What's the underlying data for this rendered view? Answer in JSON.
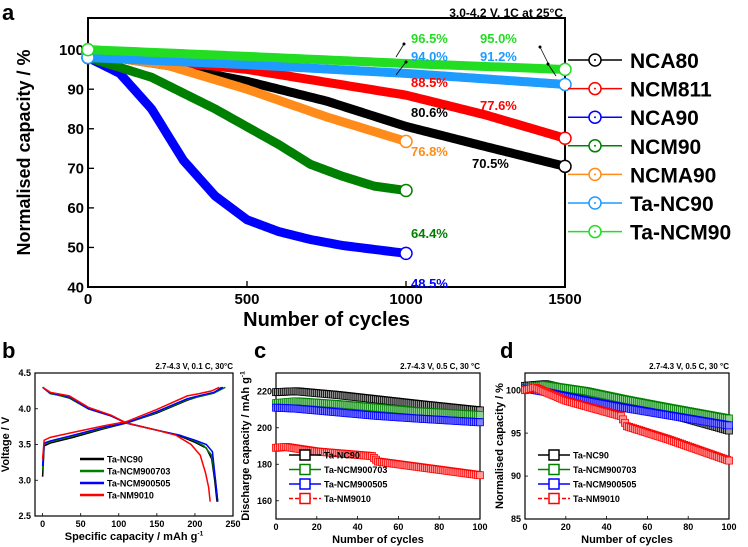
{
  "chart_data": [
    {
      "panel": "a",
      "type": "line",
      "title": "3.0-4.2 V, 1C  at 25°C",
      "xlabel": "Number of cycles",
      "ylabel": "Normalised capacity / %",
      "xlim": [
        0,
        1500
      ],
      "ylim": [
        40,
        108
      ],
      "xticks": [
        0,
        500,
        1000,
        1500
      ],
      "yticks": [
        40,
        50,
        60,
        70,
        80,
        90,
        100
      ],
      "legend_position": "right-outside",
      "series": [
        {
          "name": "NCA80",
          "color": "#000000",
          "x": [
            0,
            250,
            500,
            750,
            1000,
            1250,
            1500
          ],
          "y": [
            99,
            96,
            92,
            87,
            80.6,
            75.5,
            70.5
          ]
        },
        {
          "name": "NCM811",
          "color": "#ff0000",
          "x": [
            0,
            500,
            1000,
            1250,
            1500
          ],
          "y": [
            99,
            95,
            88.5,
            83.5,
            77.6
          ]
        },
        {
          "name": "NCA90",
          "color": "#0000ff",
          "x": [
            0,
            100,
            200,
            300,
            400,
            500,
            600,
            700,
            800,
            900,
            1000
          ],
          "y": [
            98,
            94,
            85,
            72,
            63,
            57,
            54,
            52,
            50.5,
            49.5,
            48.5
          ]
        },
        {
          "name": "NCM90",
          "color": "#008000",
          "x": [
            0,
            200,
            400,
            600,
            700,
            800,
            900,
            1000
          ],
          "y": [
            98,
            93,
            85,
            76,
            71,
            68,
            65.5,
            64.4
          ]
        },
        {
          "name": "NCMA90",
          "color": "#ff8c1a",
          "x": [
            0,
            250,
            500,
            750,
            1000
          ],
          "y": [
            99,
            96,
            90,
            83,
            76.8
          ]
        },
        {
          "name": "Ta-NC90",
          "color": "#1e9bff",
          "x": [
            0,
            500,
            1000,
            1500
          ],
          "y": [
            98,
            96.2,
            94.0,
            91.2
          ]
        },
        {
          "name": "Ta-NCM90",
          "color": "#22dd22",
          "x": [
            0,
            500,
            1000,
            1500
          ],
          "y": [
            100,
            98.3,
            96.5,
            95.0
          ]
        }
      ],
      "annotations": [
        {
          "text": "96.5%",
          "color": "#22dd22"
        },
        {
          "text": "94.0%",
          "color": "#1e9bff"
        },
        {
          "text": "88.5%",
          "color": "#ff0000"
        },
        {
          "text": "80.6%",
          "color": "#000000"
        },
        {
          "text": "76.8%",
          "color": "#ff8c1a"
        },
        {
          "text": "64.4%",
          "color": "#008000"
        },
        {
          "text": "48.5%",
          "color": "#0000ff"
        },
        {
          "text": "95.0%",
          "color": "#22dd22"
        },
        {
          "text": "91.2%",
          "color": "#1e9bff"
        },
        {
          "text": "77.6%",
          "color": "#ff0000"
        },
        {
          "text": "70.5%",
          "color": "#000000"
        }
      ]
    },
    {
      "panel": "b",
      "type": "line",
      "title": "2.7-4.3 V, 0.1 C, 30°C",
      "xlabel": "Specific capacity / mAh g",
      "xlabel_sup": "-1",
      "ylabel": "Voltage / V",
      "xlim": [
        -10,
        250
      ],
      "ylim": [
        2.5,
        4.5
      ],
      "xticks": [
        0,
        50,
        100,
        150,
        200,
        250
      ],
      "yticks": [
        2.5,
        3.0,
        3.5,
        4.0,
        4.5
      ],
      "legend_position": "lower-left",
      "series": [
        {
          "name": "Ta-NC90",
          "color": "#000000",
          "charge": {
            "x": [
              0,
              2,
              10,
              40,
              80,
              110,
              150,
              190,
              205,
              225,
              235
            ],
            "y": [
              3.05,
              3.48,
              3.52,
              3.6,
              3.72,
              3.8,
              3.94,
              4.12,
              4.17,
              4.22,
              4.3
            ]
          },
          "discharge": {
            "x": [
              0,
              10,
              35,
              60,
              90,
              110,
              150,
              180,
              200,
              215,
              222,
              226,
              229
            ],
            "y": [
              4.3,
              4.22,
              4.15,
              4.0,
              3.9,
              3.8,
              3.7,
              3.62,
              3.53,
              3.45,
              3.3,
              3.0,
              2.7
            ]
          }
        },
        {
          "name": "Ta-NCM900703",
          "color": "#008000",
          "charge": {
            "x": [
              0,
              2,
              10,
              40,
              80,
              110,
              150,
              190,
              205,
              225,
              240
            ],
            "y": [
              3.15,
              3.5,
              3.54,
              3.62,
              3.73,
              3.8,
              3.95,
              4.13,
              4.17,
              4.22,
              4.3
            ]
          },
          "discharge": {
            "x": [
              0,
              10,
              35,
              60,
              90,
              110,
              150,
              180,
              200,
              212,
              222,
              227,
              230
            ],
            "y": [
              4.3,
              4.21,
              4.16,
              4.0,
              3.9,
              3.8,
              3.7,
              3.63,
              3.55,
              3.48,
              3.35,
              3.0,
              2.7
            ]
          }
        },
        {
          "name": "Ta-NCM900505",
          "color": "#0000ff",
          "charge": {
            "x": [
              0,
              2,
              10,
              40,
              80,
              110,
              150,
              190,
              205,
              225,
              237
            ],
            "y": [
              3.2,
              3.52,
              3.55,
              3.63,
              3.74,
              3.8,
              3.96,
              4.14,
              4.18,
              4.23,
              4.3
            ]
          },
          "discharge": {
            "x": [
              0,
              10,
              35,
              60,
              90,
              110,
              150,
              180,
              200,
              215,
              223,
              227,
              230
            ],
            "y": [
              4.3,
              4.22,
              4.17,
              4.0,
              3.9,
              3.8,
              3.7,
              3.63,
              3.56,
              3.5,
              3.4,
              3.0,
              2.7
            ]
          }
        },
        {
          "name": "Ta-NM9010",
          "color": "#ff0000",
          "charge": {
            "x": [
              0,
              2,
              10,
              40,
              80,
              110,
              150,
              190,
              205,
              222,
              232
            ],
            "y": [
              3.3,
              3.56,
              3.6,
              3.67,
              3.76,
              3.82,
              3.99,
              4.18,
              4.21,
              4.25,
              4.3
            ]
          },
          "discharge": {
            "x": [
              0,
              10,
              35,
              60,
              90,
              110,
              150,
              175,
              195,
              207,
              214,
              218,
              220
            ],
            "y": [
              4.3,
              4.23,
              4.18,
              4.02,
              3.91,
              3.8,
              3.7,
              3.63,
              3.5,
              3.35,
              3.1,
              2.9,
              2.7
            ]
          }
        }
      ]
    },
    {
      "panel": "c",
      "type": "scatter",
      "title": "2.7-4.3 V, 0.5 C, 30 °C",
      "xlabel": "Number of cycles",
      "ylabel": "Discharge capacity / mAh g",
      "ylabel_sup": "-1",
      "xlim": [
        0,
        100
      ],
      "ylim": [
        150,
        230
      ],
      "xticks": [
        0,
        20,
        40,
        60,
        80,
        100
      ],
      "yticks": [
        160,
        180,
        200,
        220
      ],
      "legend_position": "lower-left",
      "series": [
        {
          "name": "Ta-NC90",
          "color": "#000000",
          "x": [
            0,
            10,
            30,
            50,
            70,
            100
          ],
          "y": [
            219.5,
            220,
            218,
            215.5,
            213,
            209.5
          ]
        },
        {
          "name": "Ta-NCM900703",
          "color": "#008000",
          "x": [
            0,
            10,
            30,
            50,
            70,
            100
          ],
          "y": [
            213.5,
            214.5,
            213,
            211,
            209,
            207
          ]
        },
        {
          "name": "Ta-NCM900505",
          "color": "#0000ff",
          "x": [
            0,
            10,
            30,
            50,
            70,
            100
          ],
          "y": [
            211,
            210.5,
            208.5,
            206.5,
            205,
            203
          ]
        },
        {
          "name": "Ta-NM9010",
          "color": "#ff0000",
          "x": [
            0,
            5,
            20,
            47,
            50,
            70,
            100
          ],
          "y": [
            189,
            189.5,
            187,
            184.5,
            181.5,
            178.5,
            174
          ]
        }
      ]
    },
    {
      "panel": "d",
      "type": "scatter",
      "title": "2.7-4.3 V, 0.5 C, 30 °C",
      "xlabel": "Number of cycles",
      "ylabel": "Normalised capacity / %",
      "xlim": [
        0,
        100
      ],
      "ylim": [
        85,
        102
      ],
      "xticks": [
        0,
        20,
        40,
        60,
        80,
        100
      ],
      "yticks": [
        85,
        90,
        95,
        100
      ],
      "legend_position": "lower-left",
      "series": [
        {
          "name": "Ta-NC90",
          "color": "#000000",
          "x": [
            0,
            10,
            30,
            50,
            70,
            100
          ],
          "y": [
            100.5,
            100.7,
            99.6,
            98.3,
            97.3,
            95.3
          ]
        },
        {
          "name": "Ta-NCM900703",
          "color": "#008000",
          "x": [
            0,
            10,
            30,
            50,
            70,
            100
          ],
          "y": [
            100.3,
            100.6,
            99.9,
            98.9,
            98.0,
            96.7
          ]
        },
        {
          "name": "Ta-NCM900505",
          "color": "#0000ff",
          "x": [
            0,
            10,
            30,
            50,
            70,
            100
          ],
          "y": [
            100.2,
            99.8,
            98.8,
            97.9,
            97.1,
            95.9
          ]
        },
        {
          "name": "Ta-NM9010",
          "color": "#ff0000",
          "x": [
            0,
            5,
            20,
            47,
            50,
            70,
            100
          ],
          "y": [
            100,
            100.3,
            98.8,
            97.0,
            95.8,
            94.3,
            91.8
          ]
        }
      ]
    }
  ],
  "panel_labels": [
    "a",
    "b",
    "c",
    "d"
  ]
}
